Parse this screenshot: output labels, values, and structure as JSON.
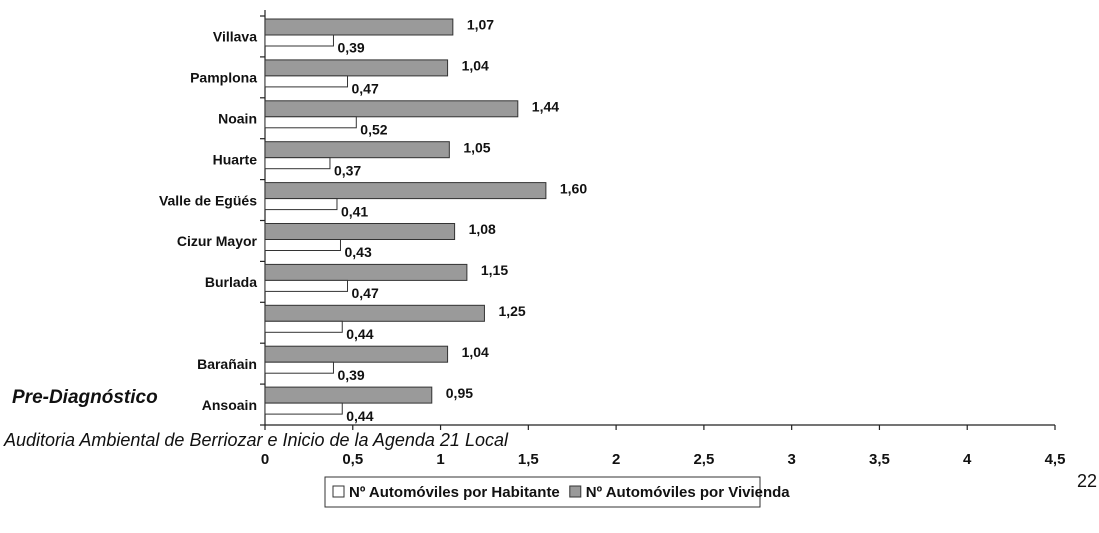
{
  "header": {
    "title": "Pre-Diagnóstico"
  },
  "footer": {
    "text": "Auditoria Ambiental de Berriozar e Inicio de la Agenda 21 Local",
    "page_number": "22"
  },
  "chart_data": {
    "type": "bar",
    "orientation": "horizontal",
    "categories": [
      "Villava",
      "Pamplona",
      "Noain",
      "Huarte",
      "Valle de Egüés",
      "Cizur Mayor",
      "Burlada",
      null,
      "Barañain",
      "Ansoain"
    ],
    "series": [
      {
        "name": "Nº Automóviles por Habitante",
        "color": "#ffffff",
        "values": [
          0.39,
          0.47,
          0.52,
          0.37,
          0.41,
          0.43,
          0.47,
          0.44,
          0.39,
          0.44
        ],
        "value_labels": [
          "0,39",
          "0,47",
          "0,52",
          "0,37",
          "0,41",
          "0,43",
          "0,47",
          "0,44",
          "0,39",
          "0,44"
        ]
      },
      {
        "name": "Nº Automóviles por Vivienda",
        "color": "#9a9a9a",
        "values": [
          1.07,
          1.04,
          1.44,
          1.05,
          1.6,
          1.08,
          1.15,
          1.25,
          1.04,
          0.95
        ],
        "value_labels": [
          "1,07",
          "1,04",
          "1,44",
          "1,05",
          "1,60",
          "1,08",
          "1,15",
          "1,25",
          "1,04",
          "0,95"
        ]
      }
    ],
    "xlim": [
      0,
      4.5
    ],
    "xticks": [
      0,
      {
        "value": 0.5,
        "label": "0,5"
      },
      1,
      {
        "value": 1.5,
        "label": "1,5"
      },
      2,
      {
        "value": 2.5,
        "label": "2,5"
      },
      3,
      {
        "value": 3.5,
        "label": "3,5"
      },
      4,
      {
        "value": 4.5,
        "label": "4,5"
      }
    ],
    "legend": "bottom"
  }
}
